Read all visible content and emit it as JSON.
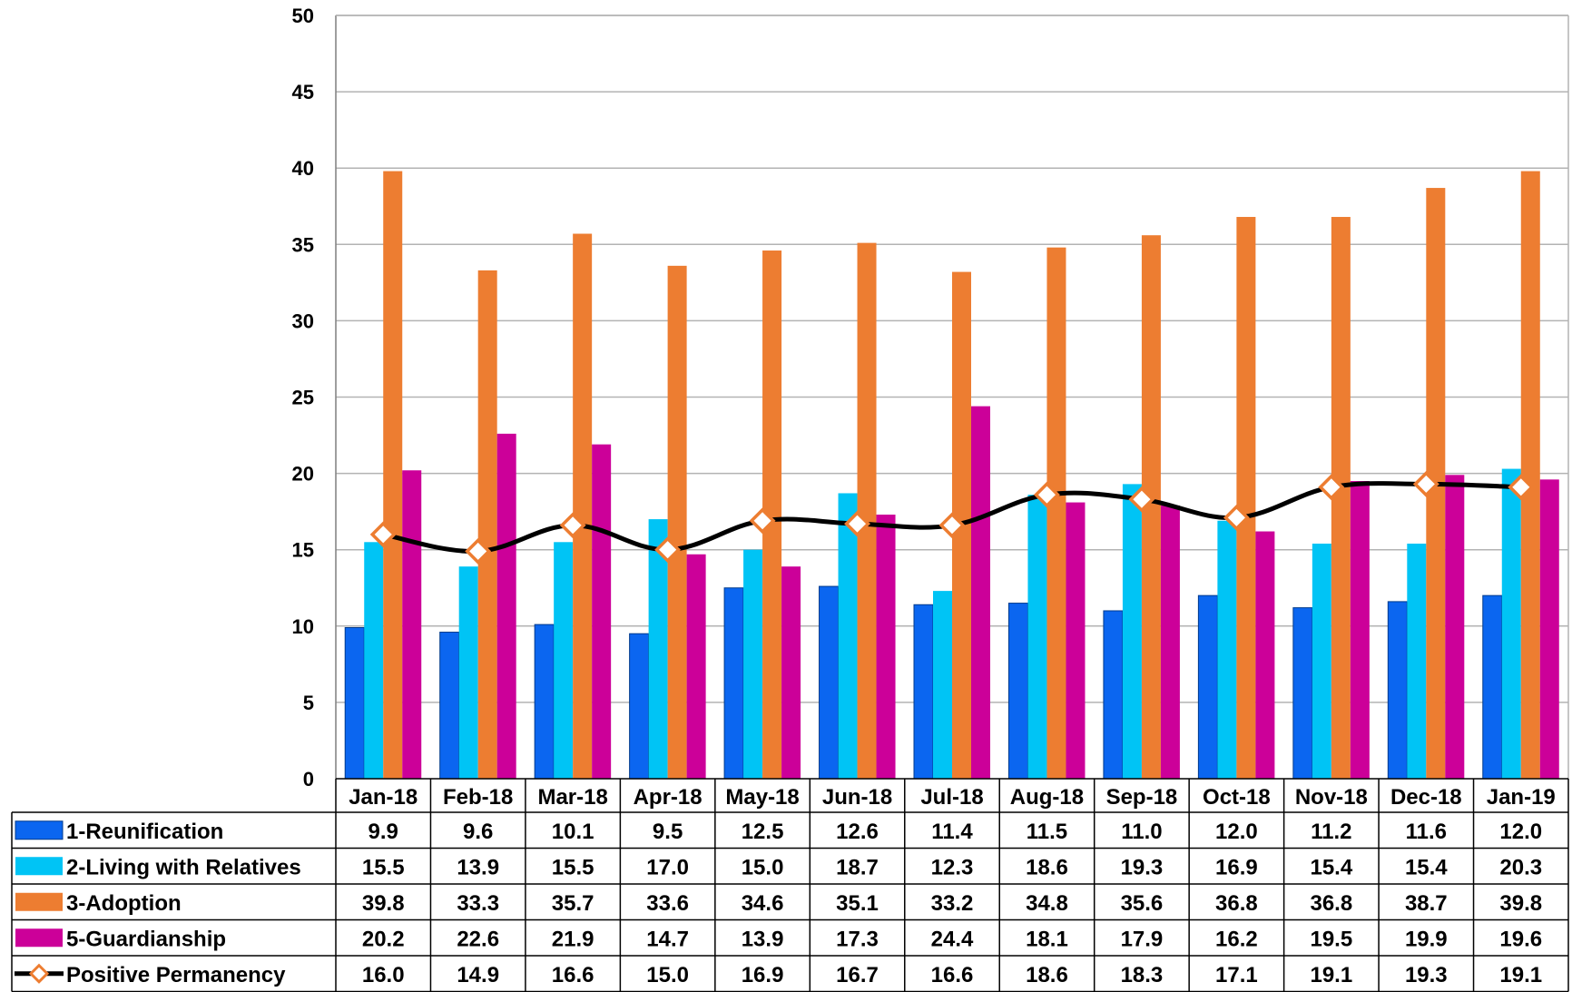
{
  "chart_data": {
    "type": "bar",
    "categories": [
      "Jan-18",
      "Feb-18",
      "Mar-18",
      "Apr-18",
      "May-18",
      "Jun-18",
      "Jul-18",
      "Aug-18",
      "Sep-18",
      "Oct-18",
      "Nov-18",
      "Dec-18",
      "Jan-19"
    ],
    "ylim": [
      0,
      50
    ],
    "yticks": [
      0,
      5,
      10,
      15,
      20,
      25,
      30,
      35,
      40,
      45,
      50
    ],
    "grid": "horizontal",
    "legend": "data-table-bottom",
    "series": [
      {
        "name": "1-Reunification",
        "type": "bar",
        "color": "#0b66f0",
        "values": [
          9.9,
          9.6,
          10.1,
          9.5,
          12.5,
          12.6,
          11.4,
          11.5,
          11.0,
          12.0,
          11.2,
          11.6,
          12.0
        ]
      },
      {
        "name": "2-Living with Relatives",
        "type": "bar",
        "color": "#00c4f5",
        "values": [
          15.5,
          13.9,
          15.5,
          17.0,
          15.0,
          18.7,
          12.3,
          18.6,
          19.3,
          16.9,
          15.4,
          15.4,
          20.3
        ]
      },
      {
        "name": "3-Adoption",
        "type": "bar",
        "color": "#ed7d31",
        "values": [
          39.8,
          33.3,
          35.7,
          33.6,
          34.6,
          35.1,
          33.2,
          34.8,
          35.6,
          36.8,
          36.8,
          38.7,
          39.8
        ]
      },
      {
        "name": "5-Guardianship",
        "type": "bar",
        "color": "#cc0099",
        "values": [
          20.2,
          22.6,
          21.9,
          14.7,
          13.9,
          17.3,
          24.4,
          18.1,
          17.9,
          16.2,
          19.5,
          19.9,
          19.6
        ]
      },
      {
        "name": "Positive Permanency",
        "type": "line",
        "color": "#000000",
        "marker_color": "#ed7d31",
        "values": [
          16.0,
          14.9,
          16.6,
          15.0,
          16.9,
          16.7,
          16.6,
          18.6,
          18.3,
          17.1,
          19.1,
          19.3,
          19.1
        ]
      }
    ]
  }
}
